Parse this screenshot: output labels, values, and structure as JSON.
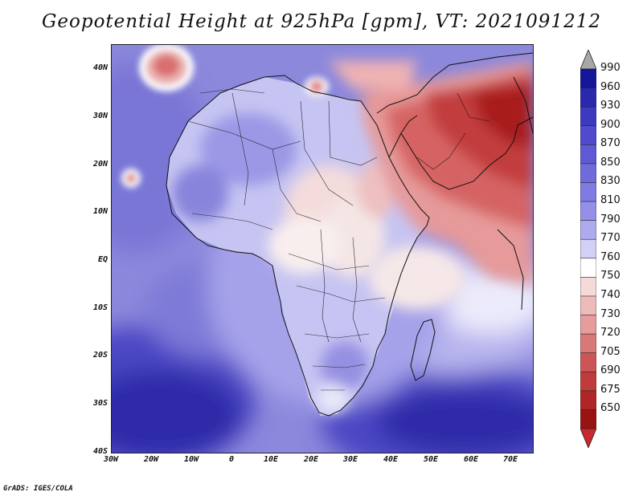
{
  "title": "Geopotential Height at 925hPa [gpm], VT: 2021091212",
  "footer": "GrADS: IGES/COLA",
  "map": {
    "lat_labels": [
      "40N",
      "30N",
      "20N",
      "10N",
      "EQ",
      "10S",
      "20S",
      "30S",
      "40S"
    ],
    "lon_labels": [
      "30W",
      "20W",
      "10W",
      "0",
      "10E",
      "20E",
      "30E",
      "40E",
      "50E",
      "60E",
      "70E"
    ]
  },
  "colorbar": {
    "labels": [
      "990",
      "960",
      "930",
      "900",
      "870",
      "850",
      "830",
      "810",
      "790",
      "770",
      "760",
      "750",
      "740",
      "730",
      "720",
      "705",
      "690",
      "675",
      "650"
    ],
    "colors": [
      "#16169a",
      "#2b28b0",
      "#3d3ac0",
      "#4f4bcc",
      "#5f5ad4",
      "#6f6bdb",
      "#7f7be2",
      "#9490e8",
      "#aeaaee",
      "#d2d0f6",
      "#ffffff",
      "#f6dada",
      "#eebbbb",
      "#e49c9c",
      "#d97878",
      "#cc5656",
      "#c03c3c",
      "#b02626",
      "#981414"
    ],
    "top_arrow_color": "#a8a8a8",
    "bottom_arrow_color": "#c8282e"
  }
}
